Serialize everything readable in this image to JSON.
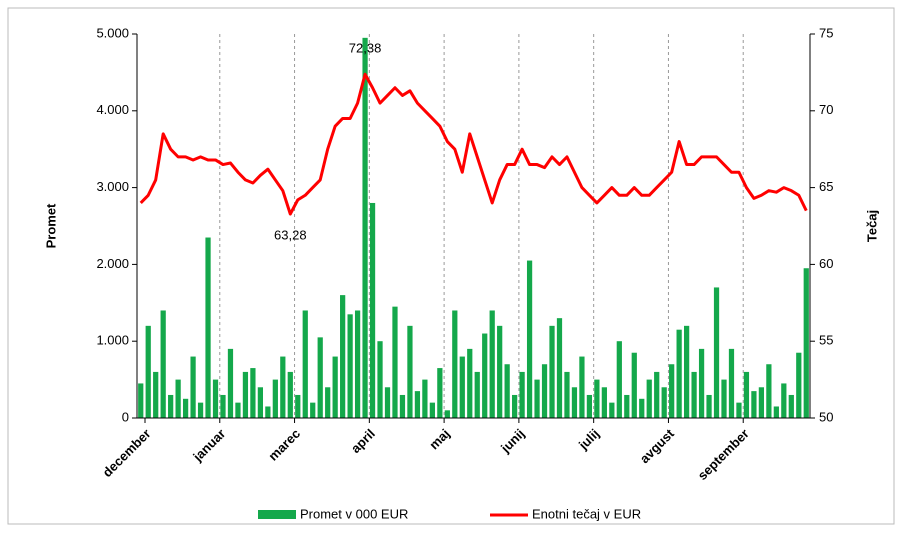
{
  "chart_data": {
    "type": "bar-line",
    "y_label": "Promet",
    "y2_label": "Tečaj",
    "categories": [
      "december",
      null,
      null,
      null,
      null,
      null,
      null,
      null,
      null,
      null,
      "januar",
      null,
      null,
      null,
      null,
      null,
      null,
      null,
      null,
      null,
      "marec",
      null,
      null,
      null,
      null,
      null,
      null,
      null,
      null,
      null,
      "april",
      null,
      null,
      null,
      null,
      null,
      null,
      null,
      null,
      null,
      "maj",
      null,
      null,
      null,
      null,
      null,
      null,
      null,
      null,
      null,
      "junij",
      null,
      null,
      null,
      null,
      null,
      null,
      null,
      null,
      null,
      "julij",
      null,
      null,
      null,
      null,
      null,
      null,
      null,
      null,
      null,
      "avgust",
      null,
      null,
      null,
      null,
      null,
      null,
      null,
      null,
      null,
      "september",
      null,
      null,
      null,
      null,
      null,
      null,
      null,
      null,
      null
    ],
    "series": [
      {
        "name": "Promet v 000 EUR",
        "color": "#14a84b",
        "axis": "y",
        "kind": "bar",
        "values": [
          450,
          1200,
          600,
          1400,
          300,
          500,
          250,
          800,
          200,
          2350,
          500,
          300,
          900,
          200,
          600,
          650,
          400,
          150,
          500,
          800,
          600,
          300,
          1400,
          200,
          1050,
          400,
          800,
          1600,
          1350,
          1400,
          4950,
          2800,
          1000,
          400,
          1450,
          300,
          1200,
          350,
          500,
          200,
          650,
          100,
          1400,
          800,
          900,
          600,
          1100,
          1400,
          1200,
          700,
          300,
          600,
          2050,
          500,
          700,
          1200,
          1300,
          600,
          400,
          800,
          300,
          500,
          400,
          200,
          1000,
          300,
          850,
          250,
          500,
          600,
          400,
          700,
          1150,
          1200,
          600,
          900,
          300,
          1700,
          500,
          900,
          200,
          600,
          350,
          400,
          700,
          150,
          450,
          300,
          850,
          1950
        ]
      },
      {
        "name": "Enotni tečaj v EUR",
        "color": "#ff0000",
        "axis": "y2",
        "kind": "line",
        "values": [
          64,
          64.5,
          65.5,
          68.5,
          67.5,
          67,
          67,
          66.8,
          67,
          66.8,
          66.8,
          66.5,
          66.6,
          66,
          65.5,
          65.3,
          65.8,
          66.2,
          65.5,
          64.8,
          63.28,
          64.2,
          64.5,
          65,
          65.5,
          67.5,
          69,
          69.5,
          69.5,
          70.5,
          72.38,
          71.5,
          70.5,
          71,
          71.5,
          71,
          71.3,
          70.5,
          70,
          69.5,
          69,
          68,
          67.5,
          66,
          68.5,
          67,
          65.5,
          64,
          65.5,
          66.5,
          66.5,
          67.5,
          66.5,
          66.5,
          66.3,
          67,
          66.5,
          67,
          66,
          65,
          64.5,
          64,
          64.5,
          65,
          64.5,
          64.5,
          65,
          64.5,
          64.5,
          65,
          65.5,
          66,
          68,
          66.5,
          66.5,
          67,
          67,
          67,
          66.5,
          66,
          66,
          65,
          64.3,
          64.5,
          64.8,
          64.7,
          65,
          64.8,
          64.5,
          63.5
        ],
        "value_labels": [
          null,
          null,
          null,
          null,
          null,
          null,
          null,
          null,
          null,
          null,
          null,
          null,
          null,
          null,
          null,
          null,
          null,
          null,
          null,
          null,
          "63,28",
          null,
          null,
          null,
          null,
          null,
          null,
          null,
          null,
          null,
          "72,38",
          null,
          null,
          null,
          null,
          null,
          null,
          null,
          null,
          null,
          null,
          null,
          null,
          null,
          null,
          null,
          null,
          null,
          null,
          null,
          null,
          null,
          null,
          null,
          null,
          null,
          null,
          null,
          null,
          null,
          null,
          null,
          null,
          null,
          null,
          null,
          null,
          null,
          null,
          null,
          null,
          null,
          null,
          null,
          null,
          null,
          null,
          null,
          null,
          null,
          null,
          null,
          null,
          null,
          null,
          null,
          null,
          null,
          null,
          null
        ]
      }
    ],
    "ylim": [
      0,
      5000
    ],
    "yticks": [
      {
        "value": 0,
        "label": "0"
      },
      {
        "value": 1000,
        "label": "1.000"
      },
      {
        "value": 2000,
        "label": "2.000"
      },
      {
        "value": 3000,
        "label": "3.000"
      },
      {
        "value": 4000,
        "label": "4.000"
      },
      {
        "value": 5000,
        "label": "5.000"
      }
    ],
    "y2lim": [
      50,
      75
    ],
    "y2ticks": [
      50,
      55,
      60,
      65,
      70,
      75
    ],
    "grid": "x",
    "legend": "bottom"
  }
}
